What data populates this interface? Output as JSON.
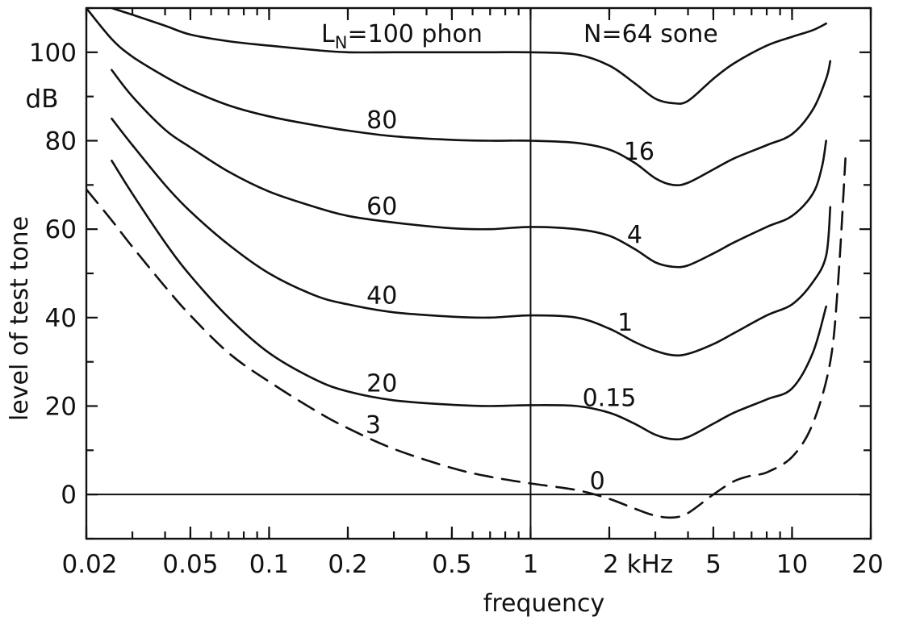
{
  "chart_data": {
    "type": "line",
    "title": "",
    "xlabel": "frequency",
    "ylabel": "level of test tone",
    "y_unit": "dB",
    "x_unit_label": "2 kHz",
    "x_scale": "log",
    "xlim": [
      0.02,
      20
    ],
    "ylim": [
      -10,
      110
    ],
    "grid": false,
    "x_ticks": [
      {
        "value": 0.02,
        "label": "0.02"
      },
      {
        "value": 0.05,
        "label": "0.05"
      },
      {
        "value": 0.1,
        "label": "0.1"
      },
      {
        "value": 0.2,
        "label": "0.2"
      },
      {
        "value": 0.5,
        "label": "0.5"
      },
      {
        "value": 1,
        "label": "1"
      },
      {
        "value": 2,
        "label": "2 kHz"
      },
      {
        "value": 5,
        "label": "5"
      },
      {
        "value": 10,
        "label": "10"
      },
      {
        "value": 20,
        "label": "20"
      }
    ],
    "y_ticks": [
      {
        "value": 0,
        "label": "0"
      },
      {
        "value": 20,
        "label": "20"
      },
      {
        "value": 40,
        "label": "40"
      },
      {
        "value": 60,
        "label": "60"
      },
      {
        "value": 80,
        "label": "80"
      },
      {
        "value": 100,
        "label": "100"
      }
    ],
    "series": [
      {
        "phon_label": "LN=100 phon",
        "sone_label": "N=64 sone",
        "style": "solid",
        "x": [
          0.025,
          0.03,
          0.04,
          0.05,
          0.07,
          0.1,
          0.15,
          0.2,
          0.3,
          0.5,
          0.7,
          1,
          1.5,
          2,
          2.5,
          3,
          3.5,
          4,
          5,
          6,
          8,
          10,
          12,
          13.5
        ],
        "y": [
          110,
          108.5,
          106,
          104,
          102.5,
          101.5,
          100.5,
          100,
          100,
          100,
          100,
          100,
          99.5,
          97,
          93,
          89.5,
          88.5,
          89,
          94,
          97.5,
          101.5,
          103.5,
          105,
          106.5
        ]
      },
      {
        "phon_label": "80",
        "sone_label": "16",
        "style": "solid",
        "x": [
          0.02,
          0.025,
          0.03,
          0.04,
          0.05,
          0.07,
          0.1,
          0.15,
          0.2,
          0.3,
          0.5,
          0.7,
          1,
          1.5,
          2,
          2.5,
          3,
          3.5,
          4,
          5,
          6,
          8,
          10,
          12,
          13.5,
          14
        ],
        "y": [
          110,
          103,
          99,
          94.5,
          91.5,
          88,
          85.5,
          83.5,
          82.3,
          81,
          80.2,
          80,
          80,
          79.5,
          78,
          75,
          71.5,
          70,
          70.5,
          73.5,
          76,
          79,
          81.5,
          87,
          94,
          98
        ]
      },
      {
        "phon_label": "60",
        "sone_label": "4",
        "style": "solid",
        "x": [
          0.025,
          0.03,
          0.04,
          0.05,
          0.07,
          0.1,
          0.15,
          0.2,
          0.3,
          0.5,
          0.7,
          1,
          1.5,
          2,
          2.5,
          3,
          3.5,
          4,
          5,
          6,
          8,
          10,
          12,
          13,
          13.5
        ],
        "y": [
          96,
          90,
          82.5,
          78.5,
          73,
          68.5,
          65,
          63,
          61.5,
          60.2,
          60,
          60.5,
          60,
          58.5,
          55.5,
          52.5,
          51.5,
          51.8,
          54.5,
          57,
          60.5,
          63,
          68,
          74,
          80
        ]
      },
      {
        "phon_label": "40",
        "sone_label": "1",
        "style": "solid",
        "x": [
          0.025,
          0.03,
          0.04,
          0.05,
          0.07,
          0.1,
          0.15,
          0.2,
          0.3,
          0.5,
          0.7,
          1,
          1.5,
          2,
          2.5,
          3,
          3.5,
          4,
          5,
          6,
          8,
          10,
          12,
          13.5,
          14
        ],
        "y": [
          85,
          79,
          70,
          64,
          56.5,
          50,
          45,
          43,
          41.2,
          40.2,
          40,
          40.5,
          40,
          37.5,
          34.5,
          32.5,
          31.5,
          31.8,
          34,
          36.5,
          40.5,
          43,
          48,
          54,
          65
        ]
      },
      {
        "phon_label": "20",
        "sone_label": "0.15",
        "style": "solid",
        "x": [
          0.025,
          0.03,
          0.04,
          0.05,
          0.07,
          0.1,
          0.15,
          0.2,
          0.3,
          0.5,
          0.7,
          1,
          1.5,
          2,
          2.5,
          3,
          3.5,
          4,
          5,
          6,
          8,
          10,
          12,
          13.5
        ],
        "y": [
          75.5,
          68,
          57,
          49.5,
          40,
          32,
          26,
          23.3,
          21.3,
          20.3,
          20,
          20.2,
          20,
          18.5,
          16,
          13.5,
          12.5,
          13,
          16,
          18.5,
          21.5,
          24,
          32,
          42.5
        ]
      },
      {
        "phon_label": "3",
        "sone_label": "0",
        "style": "dashed",
        "x": [
          0.02,
          0.025,
          0.03,
          0.04,
          0.05,
          0.07,
          0.1,
          0.15,
          0.2,
          0.3,
          0.5,
          0.7,
          1,
          1.5,
          2,
          2.5,
          3,
          3.5,
          4,
          5,
          6,
          7,
          8,
          10,
          12,
          14,
          15,
          16
        ],
        "y": [
          69,
          62,
          56,
          47,
          40.5,
          32,
          25.5,
          19,
          15,
          10.3,
          6,
          4,
          2.5,
          1,
          -1,
          -3.2,
          -4.8,
          -5.2,
          -4.2,
          0,
          3,
          4.3,
          5,
          8.5,
          16,
          30,
          48,
          76
        ]
      }
    ]
  }
}
